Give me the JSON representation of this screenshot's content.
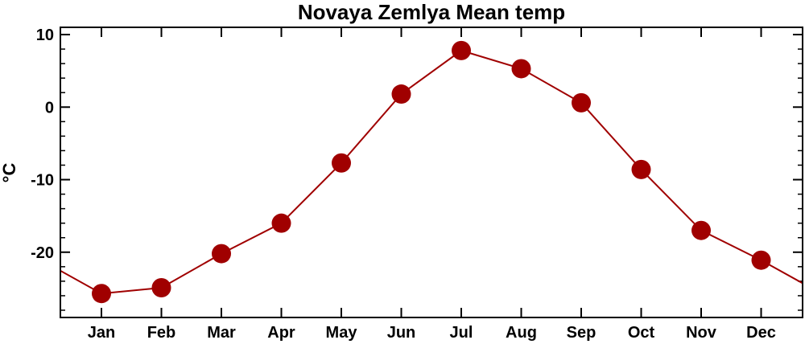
{
  "chart_data": {
    "type": "line",
    "title": "Novaya Zemlya Mean temp",
    "xlabel": "",
    "ylabel": "°C",
    "categories": [
      "Jan",
      "Feb",
      "Mar",
      "Apr",
      "May",
      "Jun",
      "Jul",
      "Aug",
      "Sep",
      "Oct",
      "Nov",
      "Dec"
    ],
    "series": [
      {
        "values": [
          -25.7,
          -24.9,
          -20.2,
          -16.0,
          -7.7,
          1.8,
          7.8,
          5.3,
          0.6,
          -8.6,
          -17.0,
          -21.1
        ]
      }
    ],
    "yticks": [
      10,
      0,
      -10,
      -20
    ],
    "ylim": [
      -29.0,
      11.0
    ],
    "grid": false,
    "colors": {
      "series": "#a00000",
      "axis": "#000000"
    }
  }
}
